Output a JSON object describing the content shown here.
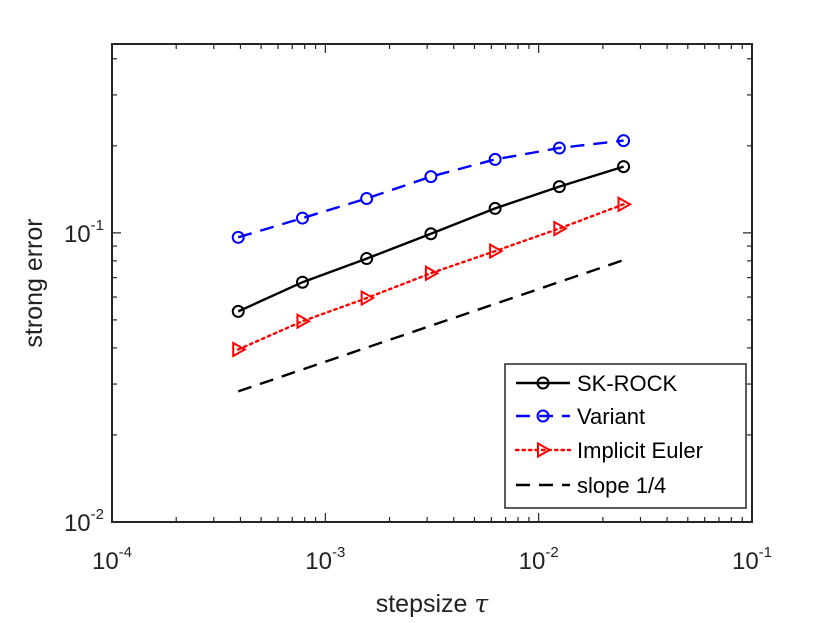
{
  "chart_data": {
    "type": "line",
    "xscale": "log",
    "yscale": "log",
    "title": "",
    "xlabel": "stepsize",
    "xlabel_symbol": "τ",
    "ylabel": "strong error",
    "xlim": [
      0.0001,
      0.1
    ],
    "ylim": [
      0.01,
      0.45
    ],
    "xticks": [
      {
        "value": 0.0001,
        "base": "10",
        "exp": "-4"
      },
      {
        "value": 0.001,
        "base": "10",
        "exp": "-3"
      },
      {
        "value": 0.01,
        "base": "10",
        "exp": "-2"
      },
      {
        "value": 0.1,
        "base": "10",
        "exp": "-1"
      }
    ],
    "yticks": [
      {
        "value": 0.01,
        "base": "10",
        "exp": "-2"
      },
      {
        "value": 0.1,
        "base": "10",
        "exp": "-1"
      }
    ],
    "x": [
      0.000390625,
      0.00078125,
      0.0015625,
      0.003125,
      0.00625,
      0.0125,
      0.025
    ],
    "series": [
      {
        "name": "SK-ROCK",
        "color": "#000000",
        "line": "solid",
        "marker": "circle",
        "values": [
          0.0535,
          0.0675,
          0.0815,
          0.0993,
          0.1215,
          0.1445,
          0.1695
        ]
      },
      {
        "name": "Variant",
        "color": "#0000ff",
        "line": "dashed",
        "marker": "circle",
        "values": [
          0.0965,
          0.1125,
          0.1315,
          0.1565,
          0.1795,
          0.1965,
          0.2085
        ]
      },
      {
        "name": "Implicit Euler",
        "color": "#ff0000",
        "line": "dotted",
        "marker": "triangle-right",
        "values": [
          0.0395,
          0.0495,
          0.0595,
          0.0725,
          0.0865,
          0.1035,
          0.1255
        ]
      },
      {
        "name": "slope 1/4",
        "color": "#000000",
        "line": "dashed",
        "marker": "none",
        "endpoints": {
          "x": [
            0.000390625,
            0.025
          ],
          "y": [
            0.0283,
            0.0805
          ]
        }
      }
    ],
    "legend_position": "bottom-right",
    "grid": false
  }
}
